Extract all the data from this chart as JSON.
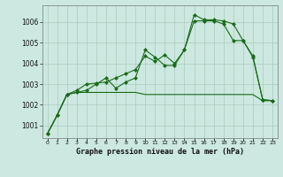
{
  "bg_color": "#cce8e0",
  "grid_color": "#aaccbb",
  "line_color": "#1a6b1a",
  "marker_color": "#1a6b1a",
  "title": "Graphe pression niveau de la mer (hPa)",
  "ylim": [
    1000.4,
    1006.8
  ],
  "xlim": [
    -0.5,
    23.5
  ],
  "yticks": [
    1001,
    1002,
    1003,
    1004,
    1005,
    1006
  ],
  "xtick_labels": [
    "0",
    "1",
    "2",
    "3",
    "4",
    "5",
    "6",
    "7",
    "8",
    "9",
    "10",
    "11",
    "12",
    "13",
    "14",
    "15",
    "16",
    "17",
    "18",
    "19",
    "20",
    "21",
    "22",
    "23"
  ],
  "series_flat": [
    1000.6,
    1001.5,
    1002.5,
    1002.6,
    1002.6,
    1002.6,
    1002.6,
    1002.6,
    1002.6,
    1002.6,
    1002.5,
    1002.5,
    1002.5,
    1002.5,
    1002.5,
    1002.5,
    1002.5,
    1002.5,
    1002.5,
    1002.5,
    1002.5,
    1002.5,
    1002.2,
    1002.2
  ],
  "series2": [
    1000.6,
    1001.5,
    1002.5,
    1002.6,
    1002.7,
    1003.0,
    1003.3,
    1002.8,
    1003.1,
    1003.3,
    1004.65,
    1004.3,
    1003.9,
    1003.9,
    1004.65,
    1006.05,
    1006.05,
    1006.05,
    1005.9,
    1005.1,
    1005.1,
    1004.3,
    1002.25,
    1002.2
  ],
  "series3": [
    1000.6,
    1001.5,
    1002.5,
    1002.7,
    1003.0,
    1003.05,
    1003.1,
    1003.3,
    1003.5,
    1003.7,
    1004.35,
    1004.1,
    1004.4,
    1004.0,
    1004.65,
    1006.35,
    1006.1,
    1006.1,
    1006.05,
    1005.9,
    1005.1,
    1004.35,
    1002.25,
    1002.2
  ]
}
